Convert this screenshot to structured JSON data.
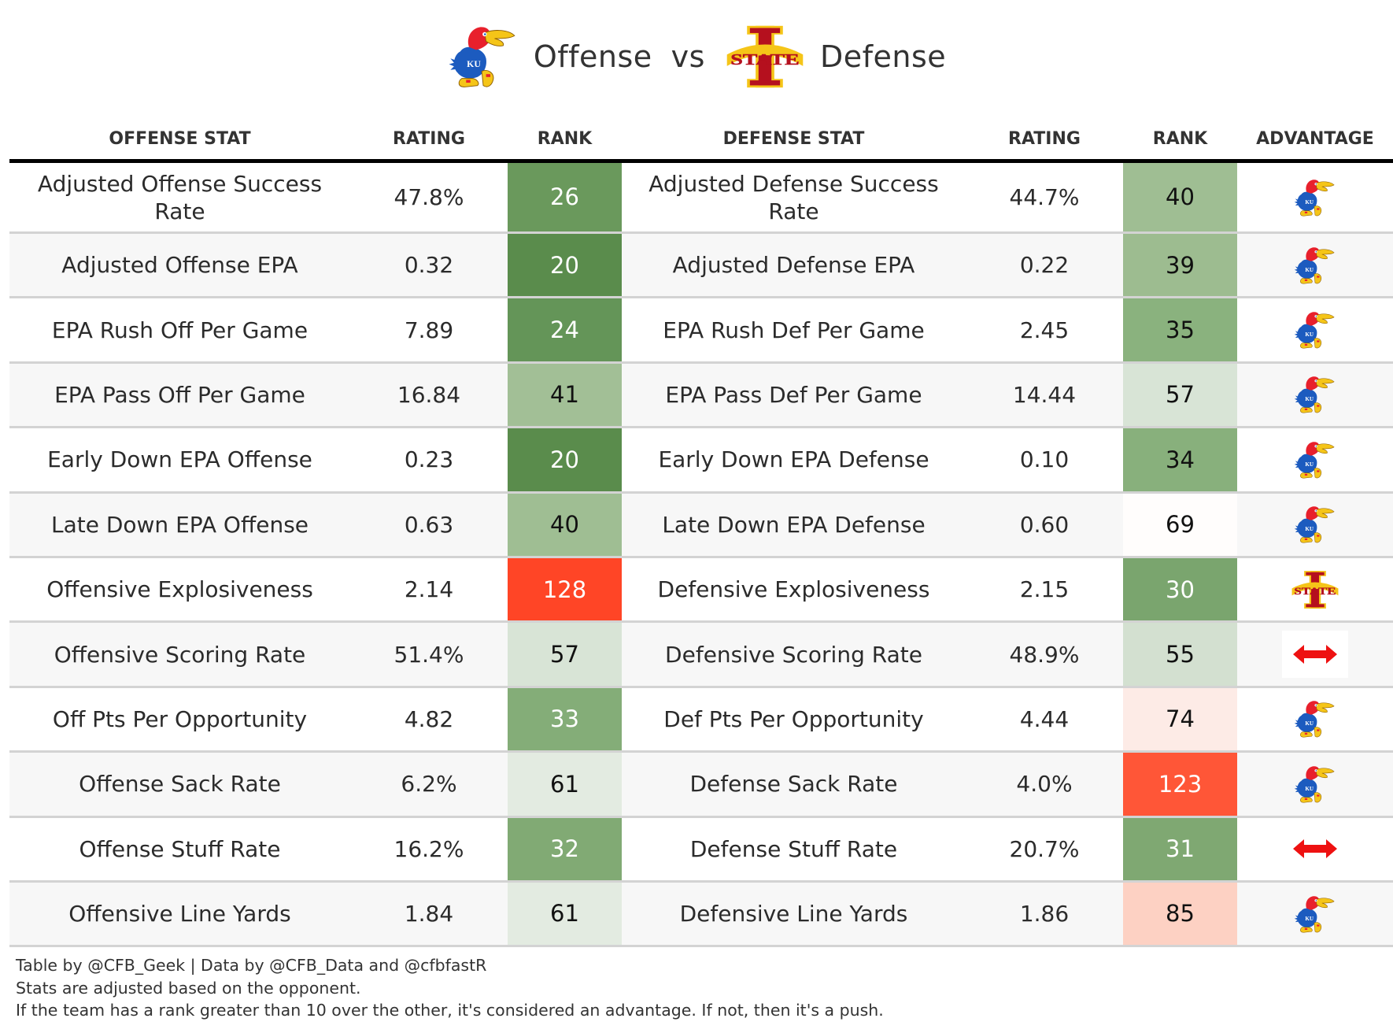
{
  "title": {
    "offense_team_logo": "kansas-jayhawk-logo",
    "offense_word": "Offense",
    "vs_word": "vs",
    "defense_team_logo": "iowa-state-logo",
    "defense_word": "Defense"
  },
  "headers": [
    "Offense Stat",
    "Rating",
    "Rank",
    "Defense Stat",
    "Rating",
    "Rank",
    "Advantage"
  ],
  "colors": {
    "green_dark": "#5a8c4c",
    "red_strong": "#ff4526",
    "push_arrow": "#ee1111",
    "kansas_blue": "#1c5bbf",
    "kansas_red": "#e8202c",
    "iowa_state_cardinal": "#b5101e",
    "iowa_state_gold": "#f5c518"
  },
  "chart_data": {
    "type": "table",
    "title": "Kansas Offense vs Iowa State Defense",
    "columns": [
      "Offense Stat",
      "Rating",
      "Rank",
      "Defense Stat",
      "Rating",
      "Rank",
      "Advantage"
    ],
    "rows": [
      {
        "off_stat": "Adjusted Offense Success Rate",
        "off_rating": "47.8%",
        "off_rank": 26,
        "off_bg": "#6a995c",
        "off_fg": "#ffffff",
        "def_stat": "Adjusted Defense Success Rate",
        "def_rating": "44.7%",
        "def_rank": 40,
        "def_bg": "#9fbe93",
        "def_fg": "#111111",
        "advantage": "kansas"
      },
      {
        "off_stat": "Adjusted Offense EPA",
        "off_rating": "0.32",
        "off_rank": 20,
        "off_bg": "#5a8c4c",
        "off_fg": "#ffffff",
        "def_stat": "Adjusted Defense EPA",
        "def_rating": "0.22",
        "def_rank": 39,
        "def_bg": "#9dbc90",
        "def_fg": "#111111",
        "advantage": "kansas"
      },
      {
        "off_stat": "EPA Rush Off Per Game",
        "off_rating": "7.89",
        "off_rank": 24,
        "off_bg": "#649558",
        "off_fg": "#ffffff",
        "def_stat": "EPA Rush Def Per Game",
        "def_rating": "2.45",
        "def_rank": 35,
        "def_bg": "#8ab27e",
        "def_fg": "#111111",
        "advantage": "kansas"
      },
      {
        "off_stat": "EPA Pass Off Per Game",
        "off_rating": "16.84",
        "off_rank": 41,
        "off_bg": "#a2bf96",
        "off_fg": "#111111",
        "def_stat": "EPA Pass Def Per Game",
        "def_rating": "14.44",
        "def_rank": 57,
        "def_bg": "#d8e4d6",
        "def_fg": "#111111",
        "advantage": "kansas"
      },
      {
        "off_stat": "Early Down EPA Offense",
        "off_rating": "0.23",
        "off_rank": 20,
        "off_bg": "#5a8c4c",
        "off_fg": "#ffffff",
        "def_stat": "Early Down EPA Defense",
        "def_rating": "0.10",
        "def_rank": 34,
        "def_bg": "#88b07c",
        "def_fg": "#111111",
        "advantage": "kansas"
      },
      {
        "off_stat": "Late Down EPA Offense",
        "off_rating": "0.63",
        "off_rank": 40,
        "off_bg": "#9fbe93",
        "off_fg": "#111111",
        "def_stat": "Late Down EPA Defense",
        "def_rating": "0.60",
        "def_rank": 69,
        "def_bg": "#fffdfc",
        "def_fg": "#111111",
        "advantage": "kansas"
      },
      {
        "off_stat": "Offensive Explosiveness",
        "off_rating": "2.14",
        "off_rank": 128,
        "off_bg": "#ff4526",
        "off_fg": "#ffffff",
        "def_stat": "Defensive Explosiveness",
        "def_rating": "2.15",
        "def_rank": 30,
        "def_bg": "#7aa56e",
        "def_fg": "#ffffff",
        "advantage": "iowa_state"
      },
      {
        "off_stat": "Offensive Scoring Rate",
        "off_rating": "51.4%",
        "off_rank": 57,
        "off_bg": "#d8e4d6",
        "off_fg": "#111111",
        "def_stat": "Defensive Scoring Rate",
        "def_rating": "48.9%",
        "def_rank": 55,
        "def_bg": "#d3e0d0",
        "def_fg": "#111111",
        "advantage": "push"
      },
      {
        "off_stat": "Off Pts Per Opportunity",
        "off_rating": "4.82",
        "off_rank": 33,
        "off_bg": "#84ad78",
        "off_fg": "#ffffff",
        "def_stat": "Def Pts Per Opportunity",
        "def_rating": "4.44",
        "def_rank": 74,
        "def_bg": "#fdebe6",
        "def_fg": "#111111",
        "advantage": "kansas"
      },
      {
        "off_stat": "Offense Sack Rate",
        "off_rating": "6.2%",
        "off_rank": 61,
        "off_bg": "#e3ebe1",
        "off_fg": "#111111",
        "def_stat": "Defense Sack Rate",
        "def_rating": "4.0%",
        "def_rank": 123,
        "def_bg": "#ff5637",
        "def_fg": "#ffffff",
        "advantage": "kansas"
      },
      {
        "off_stat": "Offense Stuff Rate",
        "off_rating": "16.2%",
        "off_rank": 32,
        "off_bg": "#81aa74",
        "off_fg": "#ffffff",
        "def_stat": "Defense Stuff Rate",
        "def_rating": "20.7%",
        "def_rank": 31,
        "def_bg": "#7fa872",
        "def_fg": "#ffffff",
        "advantage": "push"
      },
      {
        "off_stat": "Offensive Line Yards",
        "off_rating": "1.84",
        "off_rank": 61,
        "off_bg": "#e3ebe1",
        "off_fg": "#111111",
        "def_stat": "Defensive Line Yards",
        "def_rating": "1.86",
        "def_rank": 85,
        "def_bg": "#fdd1c3",
        "def_fg": "#111111",
        "advantage": "kansas"
      }
    ]
  },
  "footer": {
    "line1": "Table by @CFB_Geek | Data by @CFB_Data and @cfbfastR",
    "line2": "Stats are adjusted based on the opponent.",
    "line3": "If the team has a rank greater than 10 over the other, it's considered an advantage. If not, then it's a push."
  }
}
